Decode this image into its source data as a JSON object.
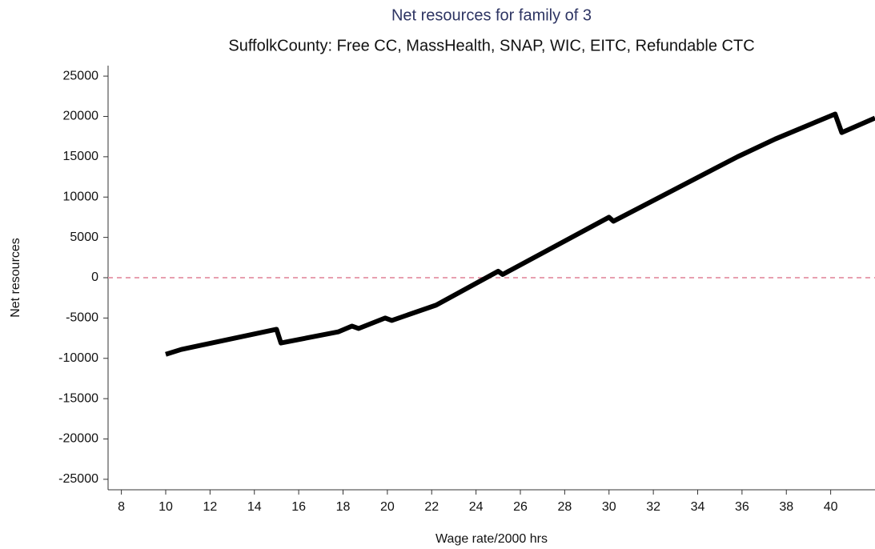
{
  "chart_data": {
    "type": "line",
    "title": "Net resources for family of 3",
    "subtitle": "SuffolkCounty: Free CC, MassHealth, SNAP, WIC, EITC, Refundable CTC",
    "x_label": "Wage rate/2000 hrs",
    "y_label": "Net resources",
    "x": [
      10,
      10.7,
      15,
      15.2,
      17.8,
      18.4,
      18.7,
      19.9,
      20.2,
      22.2,
      25,
      25.2,
      30,
      30.2,
      35.8,
      37.5,
      40.2,
      40.5,
      42
    ],
    "values": [
      -9500,
      -8900,
      -6400,
      -8100,
      -6700,
      -6000,
      -6300,
      -5000,
      -5300,
      -3400,
      800,
      400,
      7500,
      7000,
      15000,
      17200,
      20300,
      18000,
      19800
    ],
    "color": "#000000",
    "reference_line": {
      "value": 0,
      "color": "#e8a0b0"
    },
    "xlim": [
      7.4,
      42
    ],
    "ylim": [
      -26300,
      26300
    ],
    "xticks": [
      8,
      10,
      12,
      14,
      16,
      18,
      20,
      22,
      24,
      26,
      28,
      30,
      32,
      34,
      36,
      38,
      40
    ],
    "yticks": [
      25000,
      20000,
      15000,
      10000,
      5000,
      0,
      -5000,
      -10000,
      -15000,
      -20000,
      -25000
    ],
    "grid": false
  }
}
